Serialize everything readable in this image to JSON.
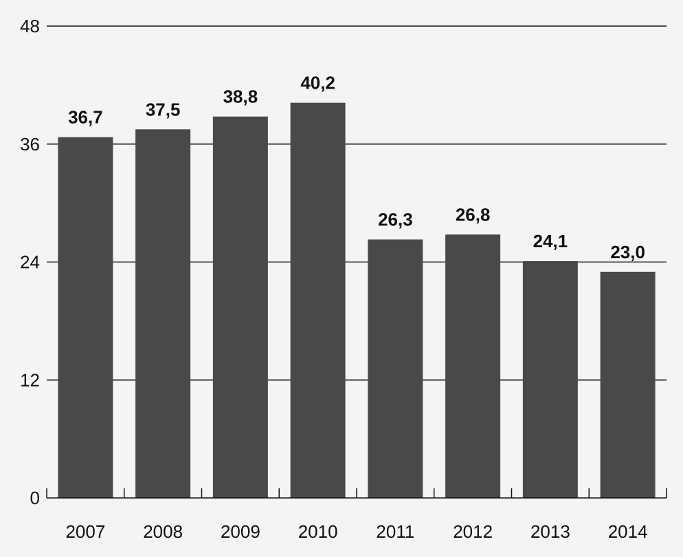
{
  "chart_data": {
    "type": "bar",
    "title": "",
    "xlabel": "",
    "ylabel": "",
    "categories": [
      "2007",
      "2008",
      "2009",
      "2010",
      "2011",
      "2012",
      "2013",
      "2014"
    ],
    "values": [
      36.7,
      37.5,
      38.8,
      40.2,
      26.3,
      26.8,
      24.1,
      23.0
    ],
    "value_labels": [
      "36,7",
      "37,5",
      "38,8",
      "40,2",
      "26,3",
      "26,8",
      "24,1",
      "23,0"
    ],
    "yticks": [
      0,
      12,
      24,
      36,
      48
    ],
    "ytick_labels": [
      "0",
      "12",
      "24",
      "36",
      "48"
    ],
    "ylim": [
      0,
      48
    ],
    "grid": true,
    "legend": "none",
    "colors": {
      "bar": "#4a4949",
      "grid": "#111111",
      "background": "#f4f4f4",
      "text": "#111111"
    }
  }
}
